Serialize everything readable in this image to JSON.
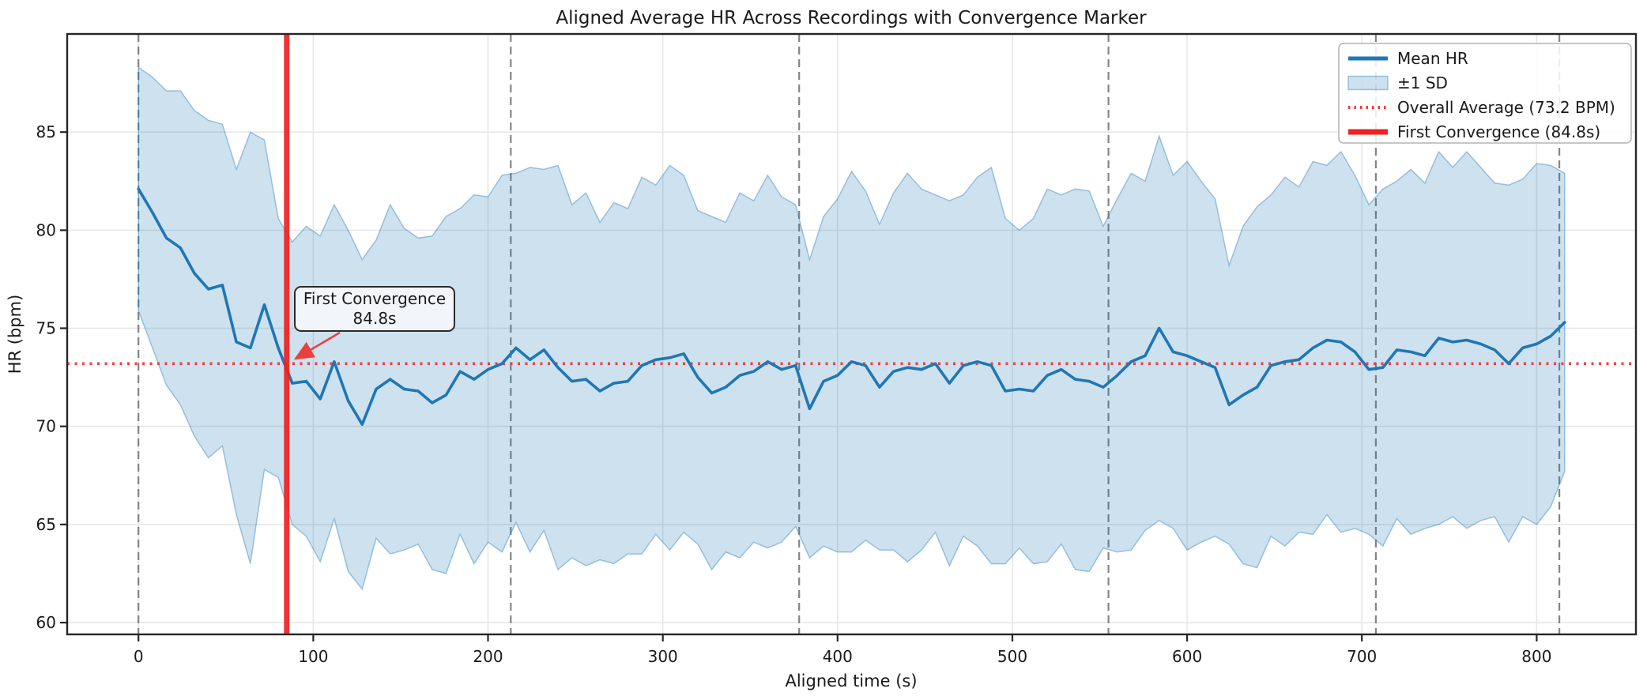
{
  "chart_data": {
    "type": "line",
    "title": "Aligned Average HR Across Recordings with Convergence Marker",
    "xlabel": "Aligned time (s)",
    "ylabel": "HR (bpm)",
    "xlim": [
      -40.8,
      856.8
    ],
    "ylim": [
      59.4,
      90.0
    ],
    "x_ticks": [
      0,
      100,
      200,
      300,
      400,
      500,
      600,
      700,
      800
    ],
    "y_ticks": [
      60,
      65,
      70,
      75,
      80,
      85
    ],
    "grid": true,
    "legend_position": "upper right",
    "overall_average_bpm": 73.2,
    "first_convergence_s": 84.8,
    "dashed_vlines_s": [
      0,
      213,
      378,
      555,
      708,
      813
    ],
    "t_start_s": 0,
    "t_step_s": 8,
    "series": [
      {
        "name": "Mean HR",
        "kind": "line"
      },
      {
        "name": "±1 SD",
        "kind": "band"
      }
    ],
    "mean_hr": [
      82.1,
      80.9,
      79.6,
      79.1,
      77.8,
      77.0,
      77.2,
      74.3,
      74.0,
      76.2,
      74.0,
      72.2,
      72.3,
      71.4,
      73.3,
      71.3,
      70.1,
      71.9,
      72.4,
      71.9,
      71.8,
      71.2,
      71.6,
      72.8,
      72.4,
      72.9,
      73.2,
      74.0,
      73.4,
      73.9,
      73.0,
      72.3,
      72.4,
      71.8,
      72.2,
      72.3,
      73.1,
      73.4,
      73.5,
      73.7,
      72.5,
      71.7,
      72.0,
      72.6,
      72.8,
      73.3,
      72.9,
      73.1,
      70.9,
      72.3,
      72.6,
      73.3,
      73.1,
      72.0,
      72.8,
      73.0,
      72.9,
      73.2,
      72.2,
      73.1,
      73.3,
      73.1,
      71.8,
      71.9,
      71.8,
      72.6,
      72.9,
      72.4,
      72.3,
      72.0,
      72.6,
      73.3,
      73.6,
      75.0,
      73.8,
      73.6,
      73.3,
      73.0,
      71.1,
      71.6,
      72.0,
      73.1,
      73.3,
      73.4,
      74.0,
      74.4,
      74.3,
      73.8,
      72.9,
      73.0,
      73.9,
      73.8,
      73.6,
      74.5,
      74.3,
      74.4,
      74.2,
      73.9,
      73.2,
      74.0,
      74.2,
      74.6,
      75.3
    ],
    "sd": [
      6.2,
      6.9,
      7.5,
      8.0,
      8.3,
      8.6,
      8.2,
      8.8,
      11.0,
      8.4,
      6.6,
      7.2,
      7.9,
      8.3,
      8.0,
      8.7,
      8.4,
      7.6,
      8.9,
      8.2,
      7.8,
      8.5,
      9.1,
      8.3,
      9.4,
      8.8,
      9.6,
      8.9,
      9.8,
      9.2,
      10.3,
      9.0,
      9.5,
      8.6,
      9.2,
      8.8,
      9.6,
      8.9,
      9.8,
      9.1,
      8.5,
      9.0,
      8.4,
      9.3,
      8.7,
      9.5,
      8.8,
      8.2,
      7.6,
      8.4,
      9.0,
      9.7,
      8.9,
      8.3,
      9.1,
      9.9,
      9.2,
      8.6,
      9.3,
      8.7,
      9.4,
      10.1,
      8.8,
      8.1,
      8.8,
      9.5,
      8.9,
      9.7,
      9.7,
      8.2,
      9.0,
      9.6,
      8.9,
      9.8,
      9.0,
      9.9,
      9.2,
      8.6,
      7.1,
      8.6,
      9.2,
      8.7,
      9.4,
      8.8,
      9.5,
      8.9,
      9.7,
      9.0,
      8.4,
      9.1,
      8.6,
      9.3,
      8.8,
      9.5,
      8.9,
      9.6,
      9.0,
      8.5,
      9.1,
      8.6,
      9.2,
      8.7,
      7.6
    ],
    "annotation": {
      "line1": "First Convergence",
      "line2": "84.8s"
    },
    "legend": {
      "items": [
        {
          "label": "Mean HR",
          "type": "line"
        },
        {
          "label": "±1 SD",
          "type": "patch"
        },
        {
          "label": "Overall Average (73.2 BPM)",
          "type": "dotted"
        },
        {
          "label": "First Convergence (84.8s)",
          "type": "thickline"
        }
      ]
    },
    "colors": {
      "mean": "#1f77b4",
      "band_fill": "rgba(31,119,180,0.22)",
      "band_edge": "rgba(31,119,180,0.40)",
      "average": "#fa3434",
      "convergence": "#ee2222",
      "dashed_marker": "#787878",
      "grid": "#e7e7e7",
      "spine": "#262626",
      "annotation_arrow": "#e84040"
    }
  }
}
